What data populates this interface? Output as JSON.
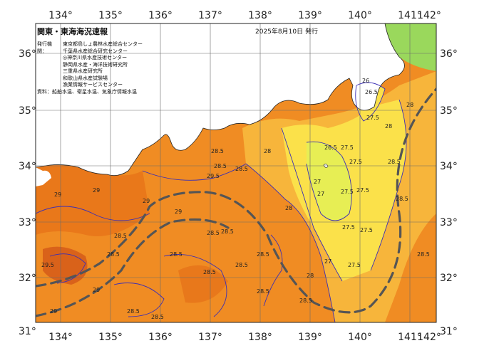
{
  "map": {
    "title": "関東・東海海況速報",
    "date": "2025年8月10日 発行",
    "issuers_label": "発行機関：",
    "issuers": [
      "東京都島しょ農林水産総合センター",
      "千葉県水産総合研究センター",
      "◎神奈川県水産技術センター",
      "静岡県水産・海洋技術研究所",
      "三重県水産研究所",
      "和歌山県水産試験場",
      "漁業情報サービスセンター"
    ],
    "source": "資料：船舶水温、衛星水温、気象庁情報水温",
    "lon_labels": [
      "134°",
      "135°",
      "136°",
      "137°",
      "138°",
      "139°",
      "140°",
      "141°",
      "142°"
    ],
    "lat_labels": [
      "36°",
      "35°",
      "34°",
      "33°",
      "32°",
      "31°"
    ],
    "isotherm_labels": [
      "28.5",
      "28.5",
      "28.5",
      "28.5",
      "28.5",
      "28.5",
      "28.5",
      "28.5",
      "28.5",
      "28.5",
      "28.5",
      "28.5",
      "28.5",
      "28.5",
      "28.5",
      "28.5",
      "28.5",
      "28.5",
      "29",
      "29",
      "29",
      "29",
      "29",
      "29",
      "29.5",
      "29.5",
      "28",
      "28",
      "28",
      "28",
      "28",
      "27.5",
      "27.5",
      "27.5",
      "27.5",
      "27.5",
      "27.5",
      "27.5",
      "27.5",
      "27",
      "27",
      "27",
      "26.5",
      "26.5",
      "26"
    ],
    "colors": {
      "warm": "#f08c23",
      "warmer": "#e36f16",
      "mid": "#f7b53b",
      "cool": "#fbe14a",
      "cooler": "#c9e85a",
      "cold": "#4fd35e",
      "land": "#ffffff",
      "isotherm": "#3b2fb5",
      "current": "#555555",
      "grid": "#6b6b6b"
    },
    "land_label": "",
    "current_axis_shown": true
  }
}
